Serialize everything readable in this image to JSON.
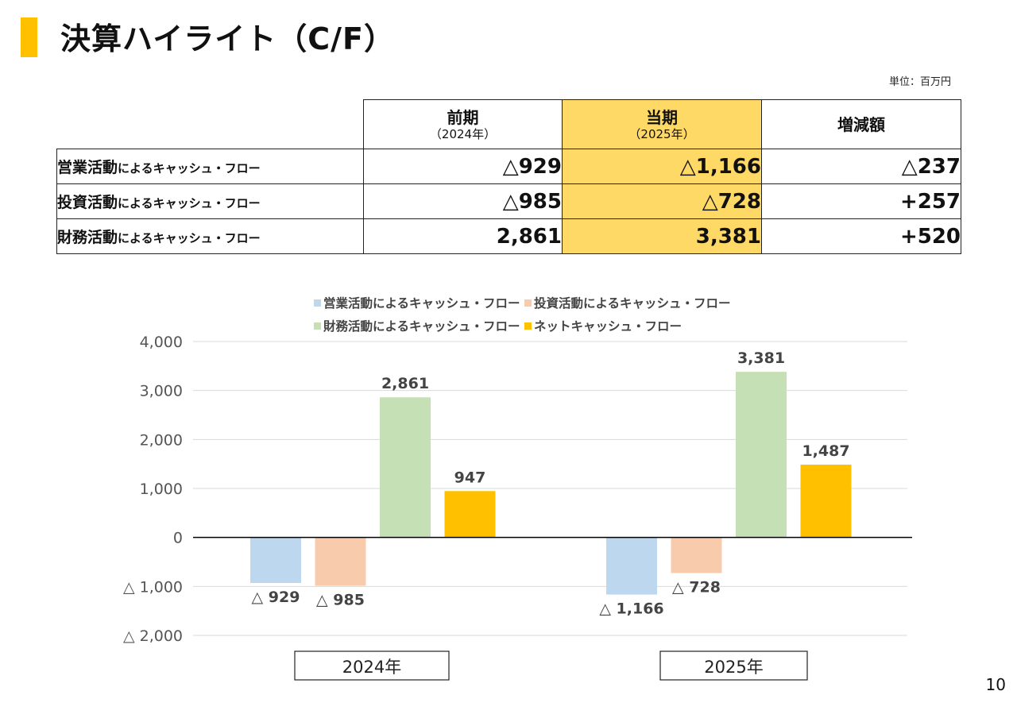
{
  "title": "決算ハイライト（C/F）",
  "unit": "単位：百万円",
  "table": {
    "columns": [
      {
        "label": "前期",
        "sub": "（2024年）"
      },
      {
        "label": "当期",
        "sub": "（2025年）"
      },
      {
        "label": "増減額",
        "sub": ""
      }
    ],
    "rows": [
      {
        "label_main": "営業活動",
        "label_suffix": "によるキャッシュ・フロー",
        "prev": "△929",
        "curr": "△1,166",
        "diff": "△237"
      },
      {
        "label_main": "投資活動",
        "label_suffix": "によるキャッシュ・フロー",
        "prev": "△985",
        "curr": "△728",
        "diff": "+257"
      },
      {
        "label_main": "財務活動",
        "label_suffix": "によるキャッシュ・フロー",
        "prev": "2,861",
        "curr": "3,381",
        "diff": "+520"
      }
    ]
  },
  "chart_data": {
    "type": "bar",
    "categories": [
      "2024年",
      "2025年"
    ],
    "series": [
      {
        "name": "営業活動によるキャッシュ・フロー",
        "color": "#BDD7EE",
        "values": [
          -929,
          -1166
        ],
        "labels": [
          "△ 929",
          "△ 1,166"
        ]
      },
      {
        "name": "投資活動によるキャッシュ・フロー",
        "color": "#F8CBAD",
        "values": [
          -985,
          -728
        ],
        "labels": [
          "△ 985",
          "△ 728"
        ]
      },
      {
        "name": "財務活動によるキャッシュ・フロー",
        "color": "#C5E0B4",
        "values": [
          2861,
          3381
        ],
        "labels": [
          "2,861",
          "3,381"
        ]
      },
      {
        "name": "ネットキャッシュ・フロー",
        "color": "#FFC000",
        "values": [
          947,
          1487
        ],
        "labels": [
          "947",
          "1,487"
        ]
      }
    ],
    "ylim": [
      -2000,
      4000
    ],
    "yticks": [
      4000,
      3000,
      2000,
      1000,
      0,
      -1000,
      -2000
    ],
    "ytick_labels": [
      "4,000",
      "3,000",
      "2,000",
      "1,000",
      "0",
      "△ 1,000",
      "△ 2,000"
    ],
    "legend_position": "top",
    "grid": true
  },
  "page_number": "10"
}
